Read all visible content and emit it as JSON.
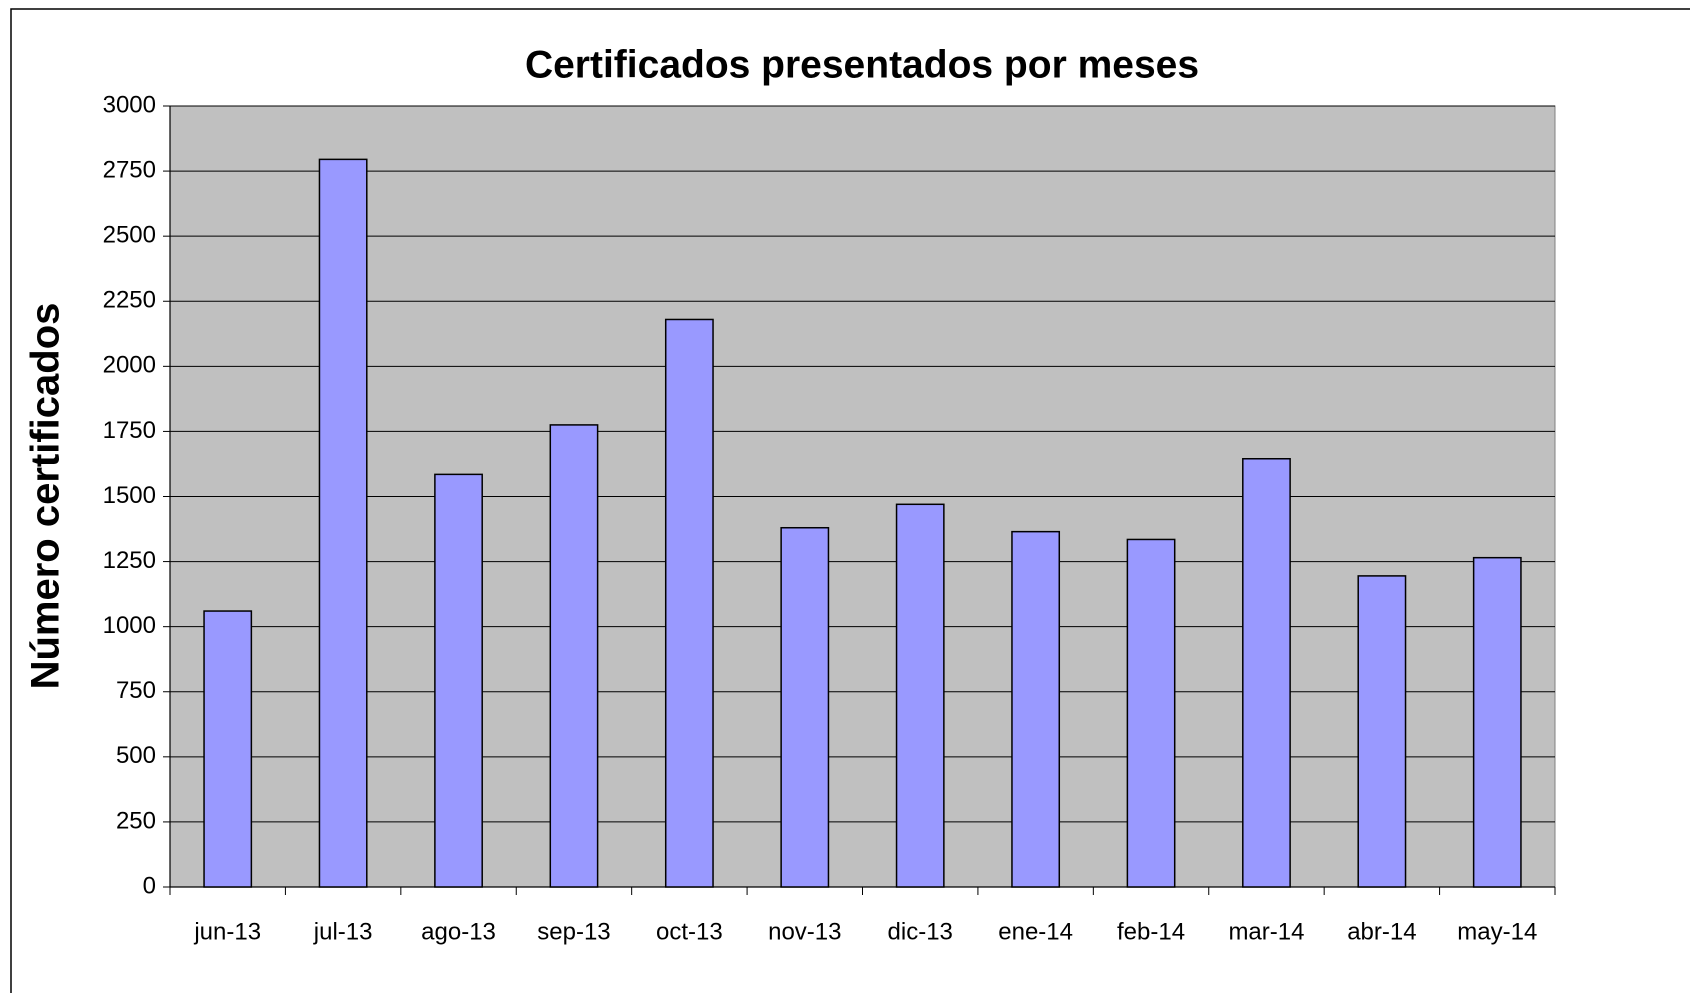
{
  "chart_data": {
    "type": "bar",
    "title": "Certificados presentados por meses",
    "y_label": "Número certificados",
    "categories": [
      "jun-13",
      "jul-13",
      "ago-13",
      "sep-13",
      "oct-13",
      "nov-13",
      "dic-13",
      "ene-14",
      "feb-14",
      "mar-14",
      "abr-14",
      "may-14"
    ],
    "values": [
      1060,
      2795,
      1585,
      1775,
      2180,
      1380,
      1470,
      1365,
      1335,
      1645,
      1195,
      1265
    ],
    "color": "#9999ff",
    "ylim": [
      0,
      3000
    ],
    "yticks": [
      0,
      250,
      500,
      750,
      1000,
      1250,
      1500,
      1750,
      2000,
      2250,
      2500,
      2750,
      3000
    ],
    "grid": true
  }
}
